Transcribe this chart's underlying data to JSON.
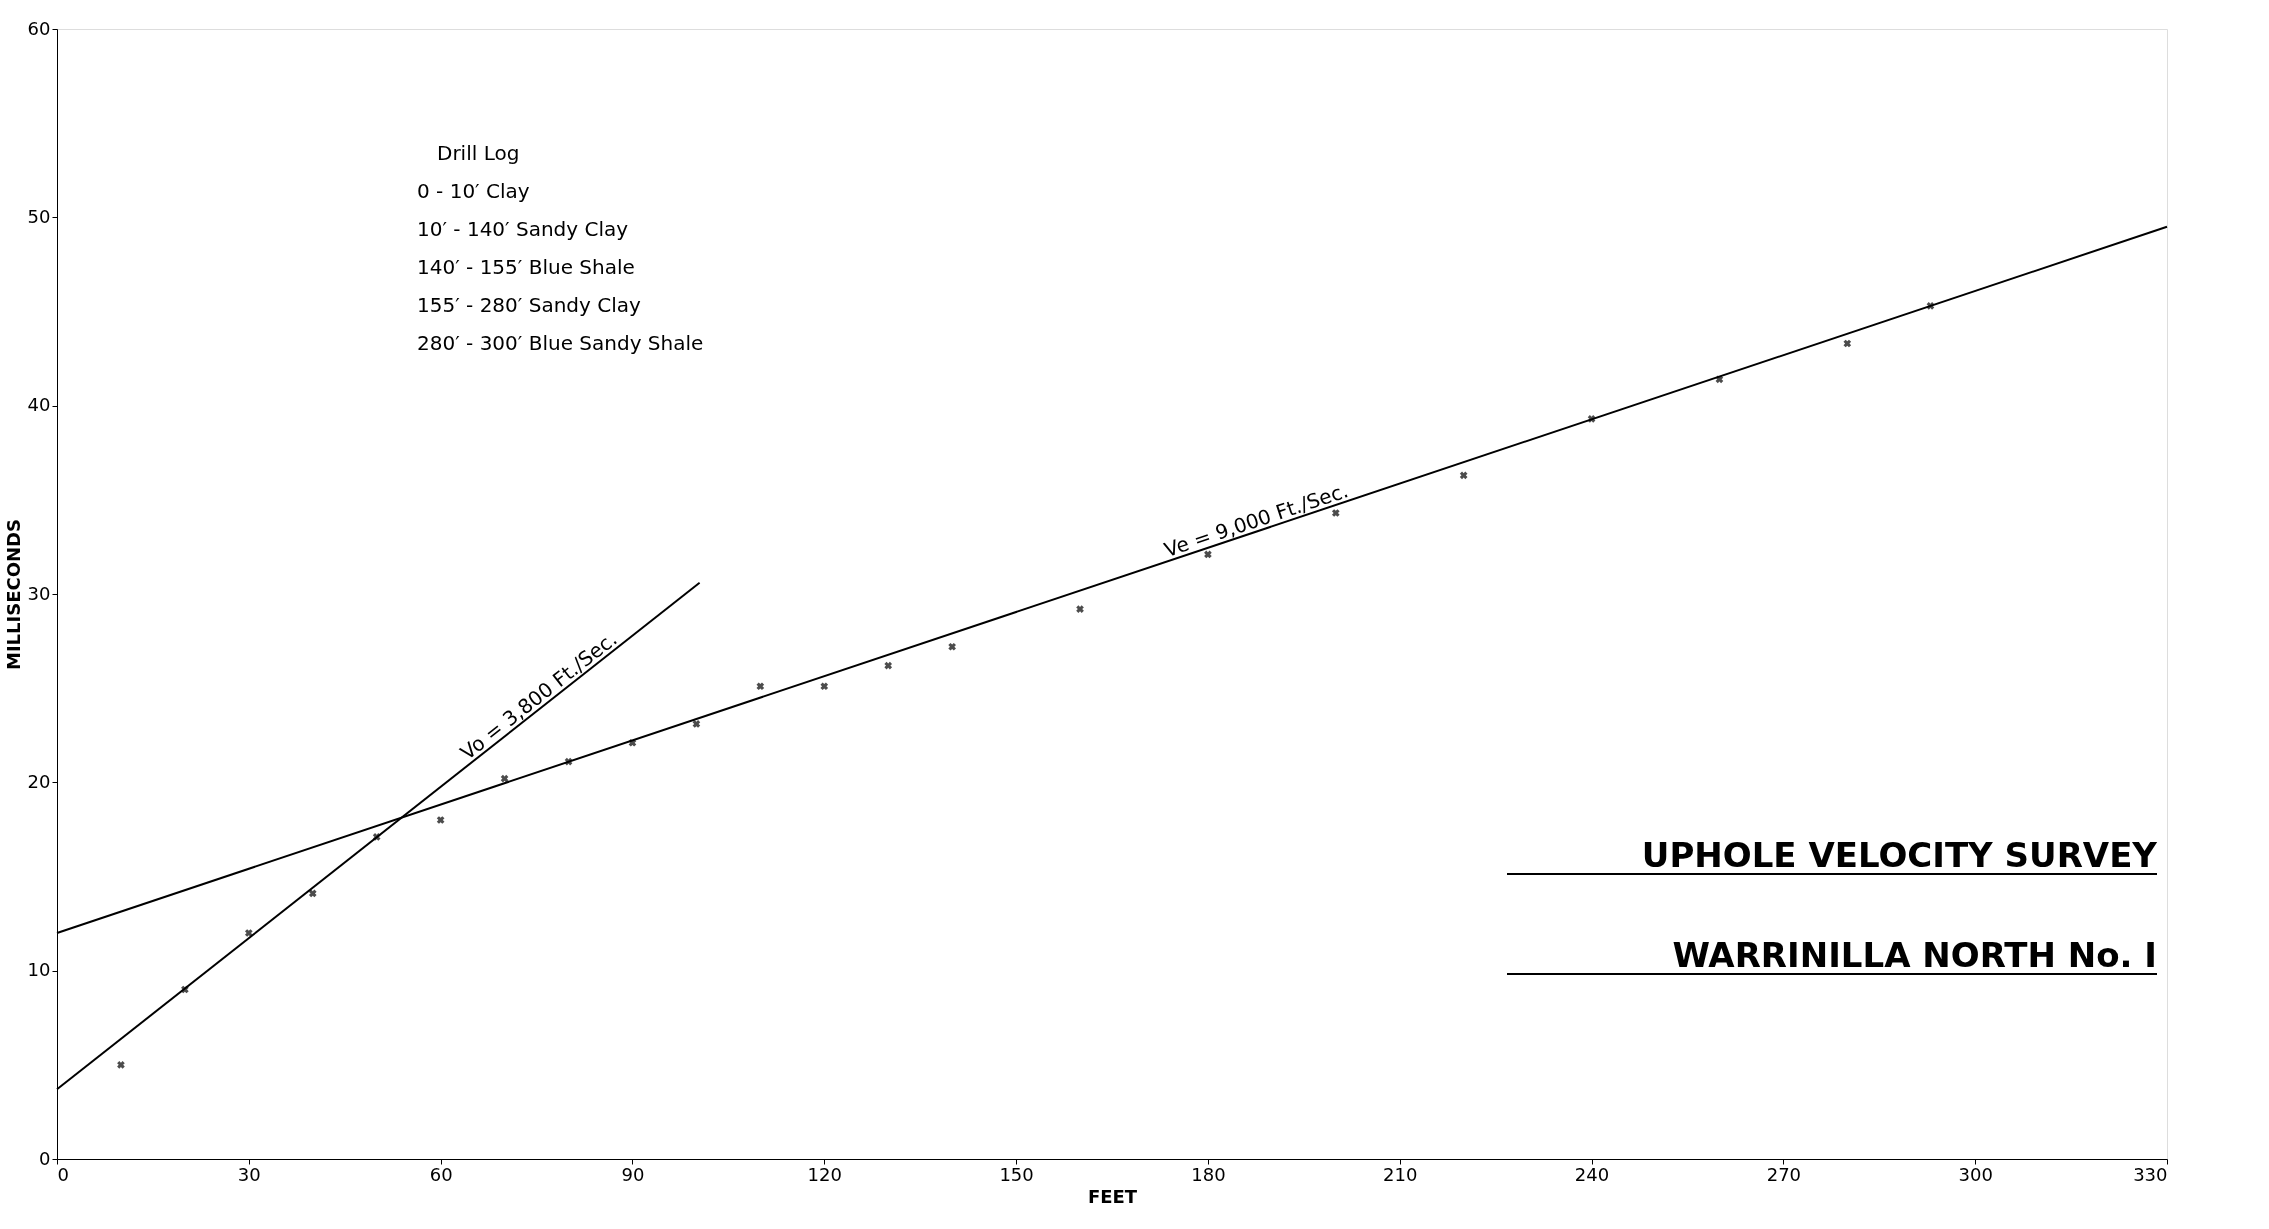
{
  "chart_data": {
    "type": "scatter",
    "title": "UPHOLE VELOCITY SURVEY",
    "subtitle": "WARRINILLA NORTH No. I",
    "xlabel": "FEET",
    "ylabel": "MILLISECONDS",
    "xlim": [
      0,
      330
    ],
    "xticks": [
      0,
      30,
      60,
      90,
      120,
      150,
      180,
      210,
      240,
      270,
      300,
      330
    ],
    "ylim": [
      0,
      60
    ],
    "yticks": [
      0,
      10,
      20,
      30,
      40,
      50,
      60
    ],
    "grid": false,
    "marker": "cross",
    "series": [
      {
        "color": "#000000",
        "x": [
          10,
          20,
          30,
          40,
          50,
          60,
          70,
          80,
          90,
          100,
          110,
          120,
          130,
          140,
          160,
          180,
          200,
          220,
          240,
          260,
          280,
          293
        ],
        "values": [
          5.0,
          9.0,
          12.0,
          14.1,
          17.1,
          18.0,
          20.2,
          21.1,
          22.1,
          23.1,
          25.1,
          25.1,
          26.2,
          27.2,
          29.2,
          32.1,
          34.3,
          36.3,
          39.3,
          41.4,
          43.3,
          45.3
        ]
      },
      {
        "type": "line",
        "color": "#000000",
        "line_style": "solid",
        "marker": "none",
        "x": [
          0,
          100.5
        ],
        "values": [
          3.7,
          30.6
        ]
      },
      {
        "type": "line",
        "color": "#000000",
        "line_style": "solid",
        "marker": "none",
        "x": [
          0,
          330
        ],
        "values": [
          12.0,
          49.5
        ]
      }
    ],
    "annotations": [
      "Vo = 3,800 Ft./Sec.",
      "Ve = 9,000 Ft./Sec.",
      "Drill Log",
      "0 - 10′ Clay",
      "10′ - 140′ Sandy Clay",
      "140′ - 155′ Blue Shale",
      "155′ - 280′ Sandy Clay",
      "280′ - 300′ Blue Sandy Shale"
    ]
  }
}
